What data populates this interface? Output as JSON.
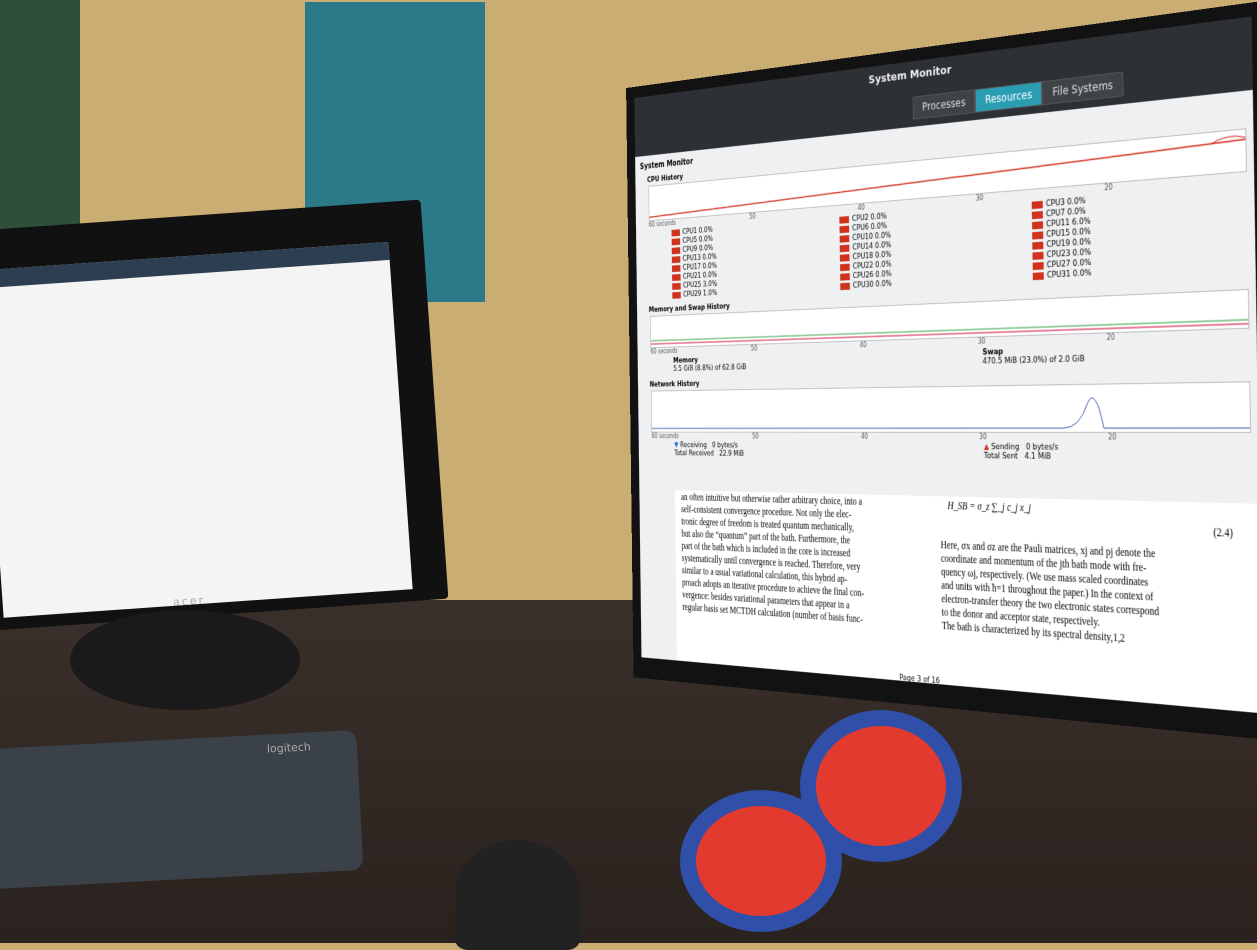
{
  "left_monitor": {
    "brand": "acer"
  },
  "keyboard": {
    "brand": "logitech"
  },
  "system_monitor": {
    "window_title": "System Monitor",
    "app_label": "System Monitor",
    "tabs": [
      "Processes",
      "Resources",
      "File Systems"
    ],
    "cpu_history": {
      "heading": "CPU History",
      "axis_labels": [
        "60 seconds",
        "50",
        "40",
        "30",
        "20"
      ],
      "cpus": [
        [
          "CPU1 0.0%",
          "CPU5 0.0%",
          "CPU9 0.0%",
          "CPU13 0.0%",
          "CPU17 0.0%",
          "CPU21 0.0%",
          "CPU25 3.0%",
          "CPU29 1.0%"
        ],
        [
          "CPU2 0.0%",
          "CPU6 0.0%",
          "CPU10 0.0%",
          "CPU14 0.0%",
          "CPU18 0.0%",
          "CPU22 0.0%",
          "CPU26 0.0%",
          "CPU30 0.0%"
        ],
        [
          "CPU3 0.0%",
          "CPU7 0.0%",
          "CPU11 6.0%",
          "CPU15 0.0%",
          "CPU19 0.0%",
          "CPU23 0.0%",
          "CPU27 0.0%",
          "CPU31 0.0%"
        ]
      ]
    },
    "memory_history": {
      "heading": "Memory and Swap History",
      "axis_labels": [
        "60 seconds",
        "50",
        "40",
        "30",
        "20"
      ],
      "memory_label": "Memory",
      "memory_value": "5.5 GiB (8.8%) of 62.8 GiB",
      "swap_label": "Swap",
      "swap_value": "470.5 MiB (23.0%) of 2.0 GiB"
    },
    "network_history": {
      "heading": "Network History",
      "axis_labels": [
        "60 seconds",
        "50",
        "40",
        "30",
        "20"
      ],
      "receiving_label": "Receiving",
      "total_received_label": "Total Received",
      "receiving_rate": "0 bytes/s",
      "total_received": "22.9 MiB",
      "sending_label": "Sending",
      "total_sent_label": "Total Sent",
      "sending_rate": "0 bytes/s",
      "total_sent": "4.1 MiB"
    }
  },
  "document": {
    "left_column": [
      "an often intuitive but otherwise rather arbitrary choice, into a",
      "self-consistent convergence procedure. Not only the elec-",
      "tronic degree of freedom is treated quantum mechanically,",
      "but also the “quantum” part of the bath. Furthermore, the",
      "part of the bath which is included in the core is increased",
      "systematically until convergence is reached. Therefore, very",
      "similar to a usual variational calculation, this hybrid ap-",
      "proach adopts an iterative procedure to achieve the final con-",
      "vergence: besides variational parameters that appear in a",
      "regular basis set MCTDH calculation (number of basis func-"
    ],
    "equation": "H_SB = σ_z ∑_j c_j x_j",
    "equation_number": "(2.4)",
    "right_column": [
      "Here, σx and σz are the Pauli matrices, xj and pj denote the",
      "coordinate and momentum of the jth bath mode with fre-",
      "quency ωj, respectively. (We use mass scaled coordinates",
      "and units with ħ=1 throughout the paper.) In the context of",
      "electron-transfer theory the two electronic states correspond",
      "to the donor and acceptor state, respectively.",
      "The bath is characterized by its spectral density,1,2"
    ],
    "page": "Page 3 of 16"
  }
}
